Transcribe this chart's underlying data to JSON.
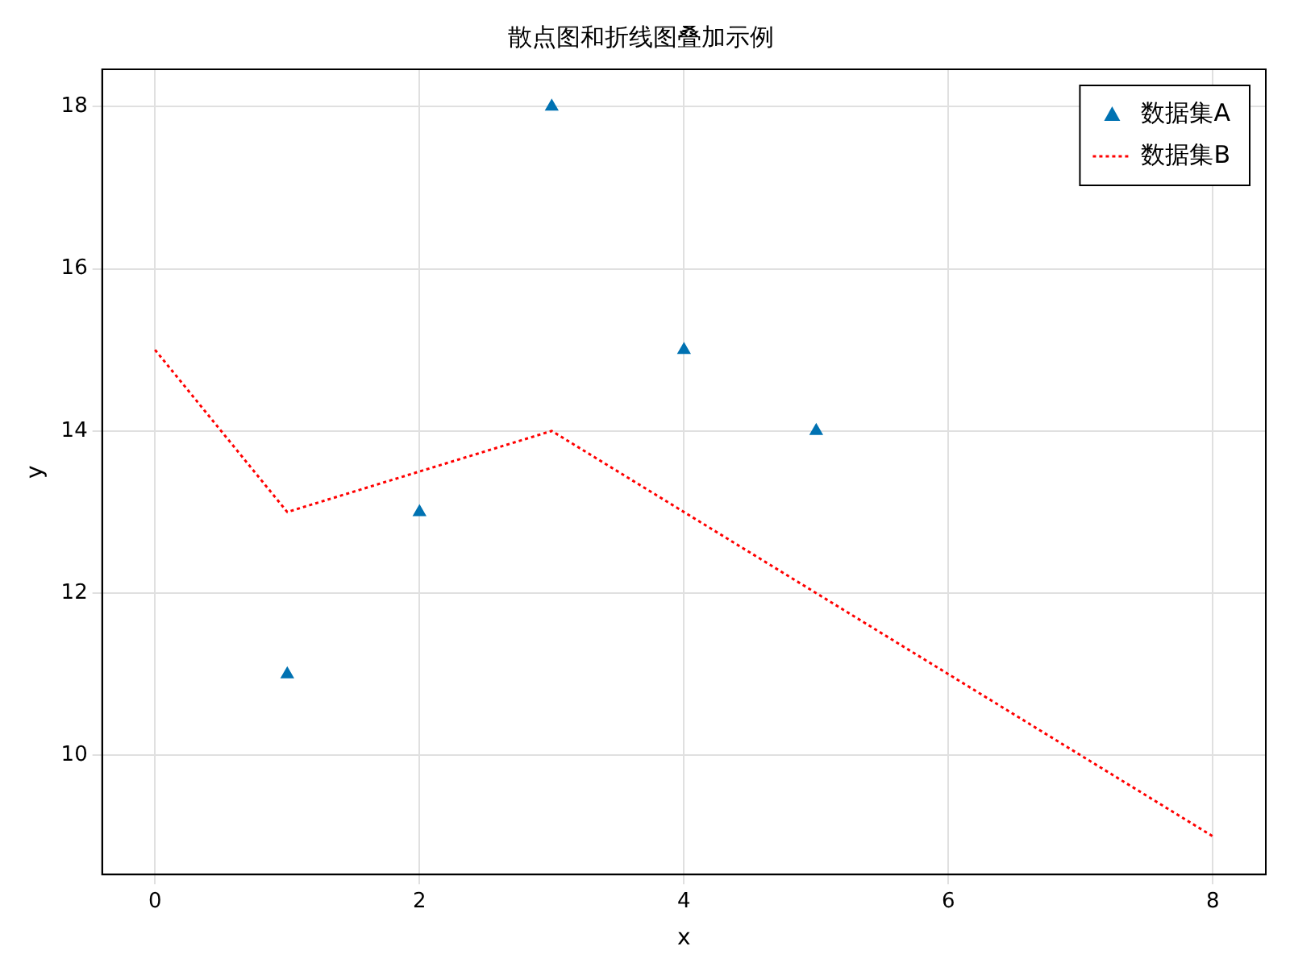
{
  "chart_data": {
    "type": "scatter",
    "title": "散点图和折线图叠加示例",
    "xlabel": "x",
    "ylabel": "y",
    "series": [
      {
        "name": "数据集A",
        "type": "scatter",
        "marker": "triangle",
        "color": "#0072b2",
        "x": [
          1,
          2,
          3,
          4,
          5
        ],
        "values": [
          11,
          13,
          18,
          15,
          14
        ]
      },
      {
        "name": "数据集B",
        "type": "line",
        "marker": "none",
        "line_style": "dotted",
        "color": "#ff0000",
        "x": [
          0,
          1,
          3,
          8
        ],
        "values": [
          15,
          13,
          14,
          9
        ]
      }
    ],
    "xlim": [
      -0.4,
      8.4
    ],
    "xticks": [
      0,
      2,
      4,
      6,
      8
    ],
    "ylim": [
      8.53,
      18.46
    ],
    "yticks": [
      10,
      12,
      14,
      16,
      18
    ],
    "grid": true,
    "legend": "top right"
  }
}
